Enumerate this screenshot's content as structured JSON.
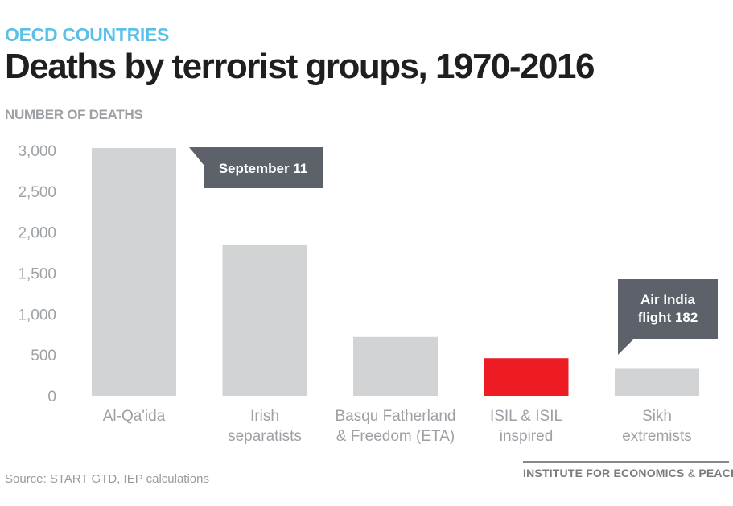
{
  "header": {
    "supertitle": "OECD COUNTRIES",
    "title": "Deaths by terrorist groups, 1970-2016"
  },
  "chart_data": {
    "type": "bar",
    "ylabel": "NUMBER OF DEATHS",
    "categories": [
      [
        "Al-Qa'ida"
      ],
      [
        "Irish",
        "separatists"
      ],
      [
        "Basqu Fatherland",
        "& Freedom (ETA)"
      ],
      [
        "ISIL & ISIL",
        "inspired"
      ],
      [
        "Sikh",
        "extremists"
      ]
    ],
    "values": [
      3030,
      1850,
      720,
      460,
      330
    ],
    "colors": [
      "#d1d3d4",
      "#d1d3d4",
      "#d1d3d4",
      "#ed1c24",
      "#d1d3d4"
    ],
    "ylim": [
      0,
      3000
    ],
    "yticks": [
      0,
      500,
      1000,
      1500,
      2000,
      2500,
      3000
    ],
    "ytick_labels": [
      "0",
      "500",
      "1,000",
      "1,500",
      "2,000",
      "2,500",
      "3,000"
    ],
    "grid": false,
    "annotations": [
      {
        "category_index": 0,
        "lines": [
          "September 11"
        ]
      },
      {
        "category_index": 4,
        "lines": [
          "Air India",
          "flight 182"
        ]
      }
    ],
    "annotation_color": "#5d6169",
    "axis_text_color": "#9da1a6"
  },
  "footer": {
    "source": "Source: START GTD, IEP calculations",
    "brand_main": "INSTITUTE FOR ECONOMICS",
    "brand_amp": "&",
    "brand_end": "PEACE"
  }
}
